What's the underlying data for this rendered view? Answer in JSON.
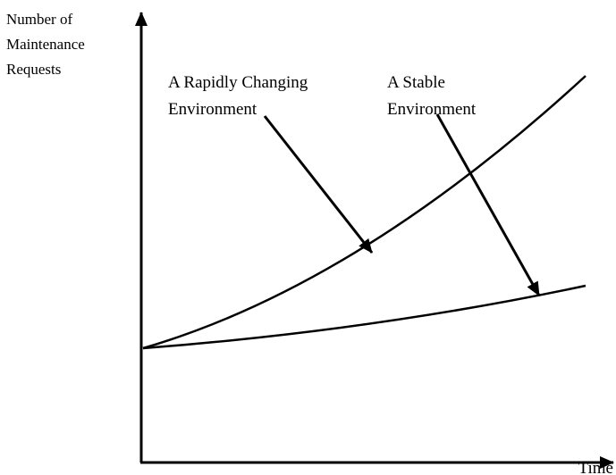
{
  "y_axis_label": [
    "Number of",
    "Maintenance",
    "Requests"
  ],
  "x_axis_label": "Time",
  "annotations": [
    {
      "lines": [
        "A Rapidly Changing",
        "Environment"
      ]
    },
    {
      "lines": [
        "A Stable",
        "Environment"
      ]
    }
  ]
}
